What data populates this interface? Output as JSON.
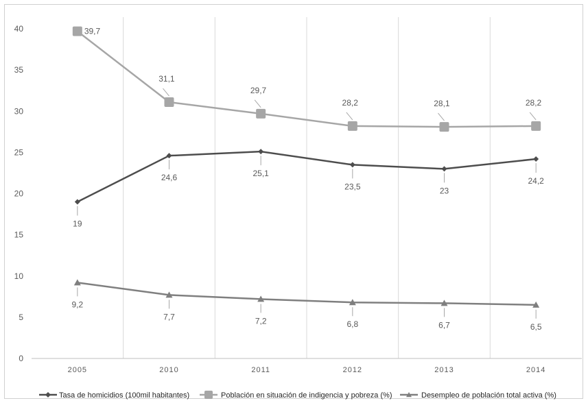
{
  "chart_data": {
    "type": "line",
    "categories": [
      "2005",
      "2010",
      "2011",
      "2012",
      "2013",
      "2014"
    ],
    "ylim": [
      0,
      40
    ],
    "yticks": [
      0,
      5,
      10,
      15,
      20,
      25,
      30,
      35,
      40
    ],
    "grid": "vertical",
    "legend_position": "bottom",
    "series": [
      {
        "name": "Tasa de homicidios (100mil habitantes)",
        "values": [
          19,
          24.6,
          25.1,
          23.5,
          23,
          24.2
        ],
        "labels": [
          "19",
          "24,6",
          "25,1",
          "23,5",
          "23",
          "24,2"
        ],
        "color": "#4d4d4d",
        "marker": "diamond"
      },
      {
        "name": "Población en situación de indigencia y pobreza (%)",
        "values": [
          39.7,
          31.1,
          29.7,
          28.2,
          28.1,
          28.2
        ],
        "labels": [
          "39,7",
          "31,1",
          "29,7",
          "28,2",
          "28,1",
          "28,2"
        ],
        "color": "#a6a6a6",
        "marker": "square"
      },
      {
        "name": "Desempleo de población total activa (%)",
        "values": [
          9.2,
          7.7,
          7.2,
          6.8,
          6.7,
          6.5
        ],
        "labels": [
          "9,2",
          "7,7",
          "7,2",
          "6,8",
          "6,7",
          "6,5"
        ],
        "color": "#7f7f7f",
        "marker": "triangle"
      }
    ]
  }
}
